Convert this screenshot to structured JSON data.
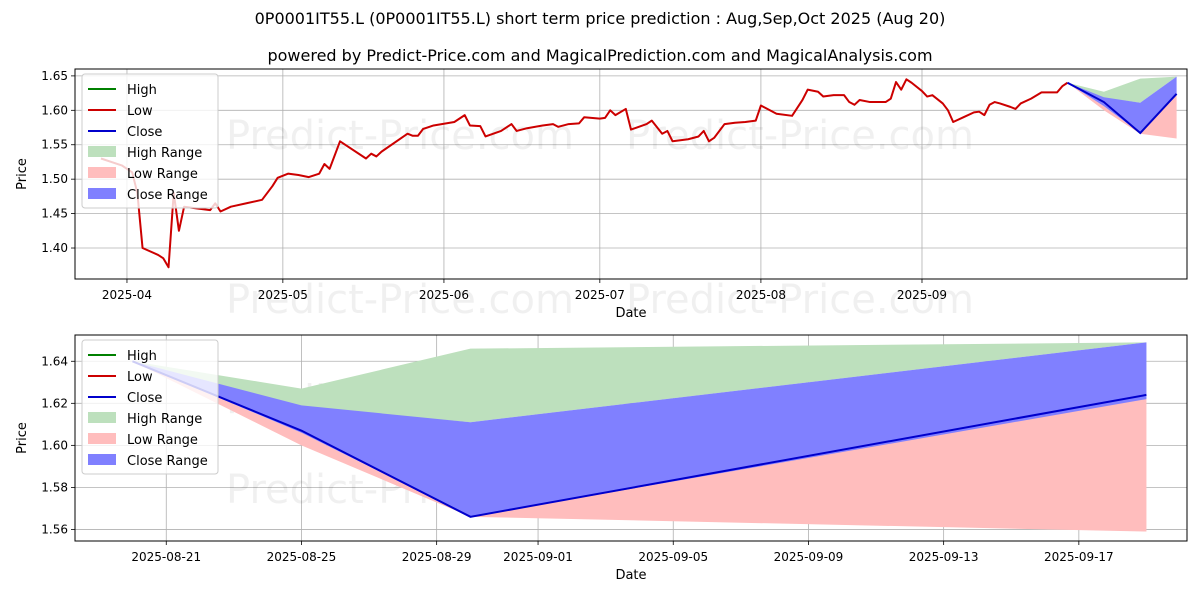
{
  "header": {
    "title": "0P0001IT55.L (0P0001IT55.L) short term price prediction : Aug,Sep,Oct 2025 (Aug 20)",
    "subtitle": "powered by Predict-Price.com and MagicalPrediction.com and MagicalAnalysis.com"
  },
  "watermark": "Predict-Price.com",
  "colors": {
    "high": "#008000",
    "low": "#cc0000",
    "close": "#0000cc",
    "high_range": "#bde0bd",
    "low_range": "#ffbdbd",
    "close_range": "#8080ff",
    "grid": "#b0b0b0"
  },
  "chart_data": [
    {
      "type": "line",
      "xlabel": "Date",
      "ylabel": "Price",
      "ylim": [
        1.355,
        1.66
      ],
      "xlim": [
        "2025-03-22",
        "2025-10-22"
      ],
      "grid": true,
      "legend_placement": "top-left",
      "x_ticks": [
        "2025-04",
        "2025-05",
        "2025-06",
        "2025-07",
        "2025-08",
        "2025-09"
      ],
      "y_ticks": [
        1.4,
        1.45,
        1.5,
        1.55,
        1.6,
        1.65
      ],
      "legend": [
        "High",
        "Low",
        "Close",
        "High Range",
        "Low Range",
        "Close Range"
      ],
      "history": {
        "name": "Low",
        "points": [
          [
            "2025-03-27",
            1.53
          ],
          [
            "2025-03-31",
            1.52
          ],
          [
            "2025-04-02",
            1.51
          ],
          [
            "2025-04-03",
            1.48
          ],
          [
            "2025-04-04",
            1.4
          ],
          [
            "2025-04-07",
            1.39
          ],
          [
            "2025-04-08",
            1.385
          ],
          [
            "2025-04-09",
            1.372
          ],
          [
            "2025-04-10",
            1.48
          ],
          [
            "2025-04-11",
            1.425
          ],
          [
            "2025-04-12",
            1.46
          ],
          [
            "2025-04-14",
            1.458
          ],
          [
            "2025-04-17",
            1.455
          ],
          [
            "2025-04-18",
            1.465
          ],
          [
            "2025-04-19",
            1.453
          ],
          [
            "2025-04-21",
            1.46
          ],
          [
            "2025-04-24",
            1.465
          ],
          [
            "2025-04-27",
            1.47
          ],
          [
            "2025-04-29",
            1.49
          ],
          [
            "2025-04-30",
            1.502
          ],
          [
            "2025-05-02",
            1.508
          ],
          [
            "2025-05-04",
            1.506
          ],
          [
            "2025-05-06",
            1.503
          ],
          [
            "2025-05-08",
            1.508
          ],
          [
            "2025-05-09",
            1.522
          ],
          [
            "2025-05-10",
            1.515
          ],
          [
            "2025-05-12",
            1.555
          ],
          [
            "2025-05-17",
            1.53
          ],
          [
            "2025-05-18",
            1.537
          ],
          [
            "2025-05-19",
            1.533
          ],
          [
            "2025-05-20",
            1.54
          ],
          [
            "2025-05-25",
            1.566
          ],
          [
            "2025-05-26",
            1.563
          ],
          [
            "2025-05-27",
            1.563
          ],
          [
            "2025-05-28",
            1.573
          ],
          [
            "2025-05-30",
            1.578
          ],
          [
            "2025-06-03",
            1.583
          ],
          [
            "2025-06-05",
            1.593
          ],
          [
            "2025-06-06",
            1.578
          ],
          [
            "2025-06-08",
            1.577
          ],
          [
            "2025-06-09",
            1.562
          ],
          [
            "2025-06-12",
            1.57
          ],
          [
            "2025-06-14",
            1.58
          ],
          [
            "2025-06-15",
            1.57
          ],
          [
            "2025-06-17",
            1.574
          ],
          [
            "2025-06-20",
            1.578
          ],
          [
            "2025-06-22",
            1.58
          ],
          [
            "2025-06-23",
            1.576
          ],
          [
            "2025-06-25",
            1.58
          ],
          [
            "2025-06-27",
            1.581
          ],
          [
            "2025-06-28",
            1.59
          ],
          [
            "2025-07-01",
            1.588
          ],
          [
            "2025-07-02",
            1.589
          ],
          [
            "2025-07-03",
            1.6
          ],
          [
            "2025-07-04",
            1.593
          ],
          [
            "2025-07-06",
            1.602
          ],
          [
            "2025-07-07",
            1.572
          ],
          [
            "2025-07-10",
            1.58
          ],
          [
            "2025-07-11",
            1.585
          ],
          [
            "2025-07-13",
            1.566
          ],
          [
            "2025-07-14",
            1.57
          ],
          [
            "2025-07-15",
            1.555
          ],
          [
            "2025-07-18",
            1.558
          ],
          [
            "2025-07-20",
            1.562
          ],
          [
            "2025-07-21",
            1.57
          ],
          [
            "2025-07-22",
            1.555
          ],
          [
            "2025-07-23",
            1.56
          ],
          [
            "2025-07-25",
            1.58
          ],
          [
            "2025-07-27",
            1.582
          ],
          [
            "2025-07-29",
            1.583
          ],
          [
            "2025-07-31",
            1.585
          ],
          [
            "2025-08-01",
            1.607
          ],
          [
            "2025-08-02",
            1.603
          ],
          [
            "2025-08-04",
            1.595
          ],
          [
            "2025-08-07",
            1.592
          ],
          [
            "2025-08-09",
            1.615
          ],
          [
            "2025-08-10",
            1.63
          ],
          [
            "2025-08-12",
            1.627
          ],
          [
            "2025-08-13",
            1.62
          ],
          [
            "2025-08-15",
            1.622
          ],
          [
            "2025-08-17",
            1.622
          ],
          [
            "2025-08-18",
            1.612
          ],
          [
            "2025-08-19",
            1.608
          ],
          [
            "2025-08-20",
            1.615
          ],
          [
            "2025-08-22",
            1.612
          ],
          [
            "2025-08-24",
            1.612
          ],
          [
            "2025-08-25",
            1.612
          ],
          [
            "2025-08-26",
            1.617
          ],
          [
            "2025-08-27",
            1.641
          ],
          [
            "2025-08-28",
            1.63
          ],
          [
            "2025-08-29",
            1.645
          ],
          [
            "2025-08-30",
            1.64
          ],
          [
            "2025-09-01",
            1.628
          ],
          [
            "2025-09-02",
            1.62
          ],
          [
            "2025-09-03",
            1.622
          ],
          [
            "2025-09-05",
            1.61
          ],
          [
            "2025-09-06",
            1.6
          ],
          [
            "2025-09-07",
            1.583
          ],
          [
            "2025-09-09",
            1.59
          ],
          [
            "2025-09-11",
            1.597
          ],
          [
            "2025-09-12",
            1.598
          ],
          [
            "2025-09-13",
            1.593
          ],
          [
            "2025-09-14",
            1.608
          ],
          [
            "2025-09-15",
            1.612
          ],
          [
            "2025-09-16",
            1.61
          ],
          [
            "2025-09-18",
            1.605
          ],
          [
            "2025-09-19",
            1.602
          ],
          [
            "2025-09-20",
            1.61
          ],
          [
            "2025-09-22",
            1.617
          ],
          [
            "2025-09-24",
            1.626
          ],
          [
            "2025-09-27",
            1.626
          ],
          [
            "2025-09-28",
            1.635
          ],
          [
            "2025-09-29",
            1.64
          ]
        ]
      },
      "prediction": {
        "dates": [
          "2025-09-29",
          "2025-10-06",
          "2025-10-13",
          "2025-10-20"
        ],
        "close": [
          1.64,
          1.612,
          1.567,
          1.624
        ],
        "high_range_upper": [
          1.64,
          1.627,
          1.646,
          1.649
        ],
        "high_range_lower": [
          1.64,
          1.618,
          1.611,
          1.649
        ],
        "low_range_upper": [
          1.64,
          1.606,
          1.567,
          1.624
        ],
        "low_range_lower": [
          1.64,
          1.6,
          1.566,
          1.559
        ],
        "close_range_upper": [
          1.64,
          1.619,
          1.611,
          1.649
        ],
        "close_range_lower": [
          1.64,
          1.606,
          1.567,
          1.622
        ]
      }
    },
    {
      "type": "line",
      "xlabel": "Date",
      "ylabel": "Price",
      "ylim": [
        1.5545,
        1.6525
      ],
      "xlim": [
        "2025-08-18.3",
        "2025-09-20.2"
      ],
      "grid": true,
      "legend_placement": "top-left",
      "x_ticks": [
        "2025-08-21",
        "2025-08-25",
        "2025-08-29",
        "2025-09-01",
        "2025-09-05",
        "2025-09-09",
        "2025-09-13",
        "2025-09-17"
      ],
      "y_ticks": [
        1.56,
        1.58,
        1.6,
        1.62,
        1.64
      ],
      "legend": [
        "High",
        "Low",
        "Close",
        "High Range",
        "Low Range",
        "Close Range"
      ],
      "prediction": {
        "dates": [
          "2025-08-20",
          "2025-08-25",
          "2025-08-30",
          "2025-09-19"
        ],
        "close": [
          1.64,
          1.607,
          1.566,
          1.624
        ],
        "high_range_upper": [
          1.64,
          1.627,
          1.646,
          1.649
        ],
        "high_range_lower": [
          1.64,
          1.618,
          1.611,
          1.649
        ],
        "low_range_upper": [
          1.64,
          1.606,
          1.566,
          1.624
        ],
        "low_range_lower": [
          1.64,
          1.6,
          1.566,
          1.559
        ],
        "close_range_upper": [
          1.64,
          1.619,
          1.611,
          1.649
        ],
        "close_range_lower": [
          1.64,
          1.606,
          1.566,
          1.622
        ]
      }
    }
  ]
}
